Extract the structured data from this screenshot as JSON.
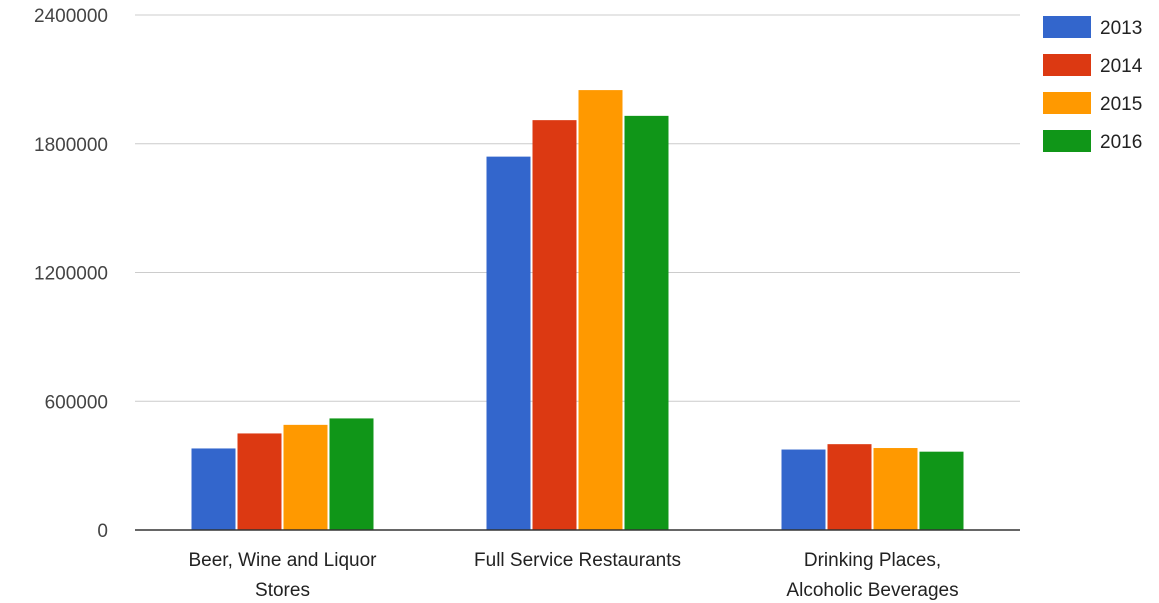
{
  "chart_data": {
    "type": "bar",
    "categories": [
      [
        "Beer, Wine and Liquor",
        "Stores"
      ],
      [
        "Full Service Restaurants"
      ],
      [
        "Drinking Places,",
        "Alcoholic Beverages"
      ]
    ],
    "series": [
      {
        "name": "2013",
        "color": "#3366cc",
        "values": [
          380000,
          1740000,
          375000
        ]
      },
      {
        "name": "2014",
        "color": "#dc3912",
        "values": [
          450000,
          1910000,
          400000
        ]
      },
      {
        "name": "2015",
        "color": "#ff9900",
        "values": [
          490000,
          2050000,
          382000
        ]
      },
      {
        "name": "2016",
        "color": "#109618",
        "values": [
          520000,
          1930000,
          365000
        ]
      }
    ],
    "y_ticks": [
      "0",
      "600000",
      "1200000",
      "1800000",
      "2400000"
    ],
    "ylim": [
      0,
      2400000
    ],
    "grid": true,
    "legend_position": "right"
  }
}
